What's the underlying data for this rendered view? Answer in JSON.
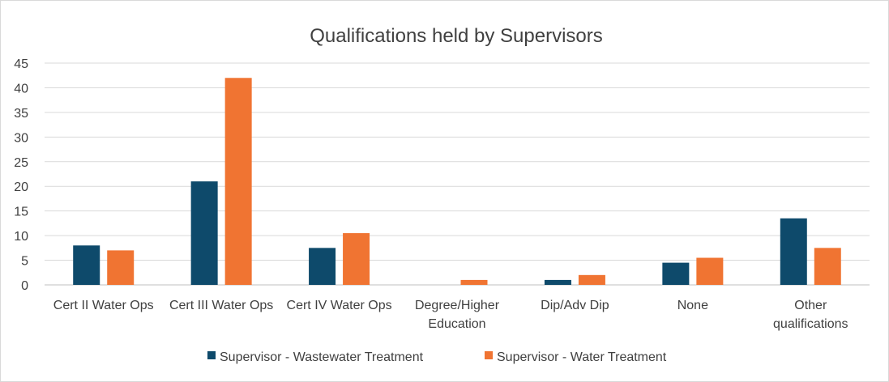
{
  "chart_data": {
    "type": "bar",
    "title": "Qualifications held by Supervisors",
    "xlabel": "",
    "ylabel": "",
    "ylim": [
      0,
      45
    ],
    "yticks": [
      0,
      5,
      10,
      15,
      20,
      25,
      30,
      35,
      40,
      45
    ],
    "grid": true,
    "legend_position": "bottom",
    "categories": [
      [
        "Cert II Water Ops"
      ],
      [
        "Cert III Water Ops"
      ],
      [
        "Cert IV Water Ops"
      ],
      [
        "Degree/Higher",
        "Education"
      ],
      [
        "Dip/Adv Dip"
      ],
      [
        "None"
      ],
      [
        "Other",
        "qualifications"
      ]
    ],
    "series": [
      {
        "name": "Supervisor - Wastewater Treatment",
        "color": "#0e4a6b",
        "values": [
          8,
          21,
          7.5,
          0,
          1,
          4.5,
          13.5
        ]
      },
      {
        "name": "Supervisor - Water Treatment",
        "color": "#f07432",
        "values": [
          7,
          42,
          10.5,
          1,
          2,
          5.5,
          7.5
        ]
      }
    ]
  }
}
